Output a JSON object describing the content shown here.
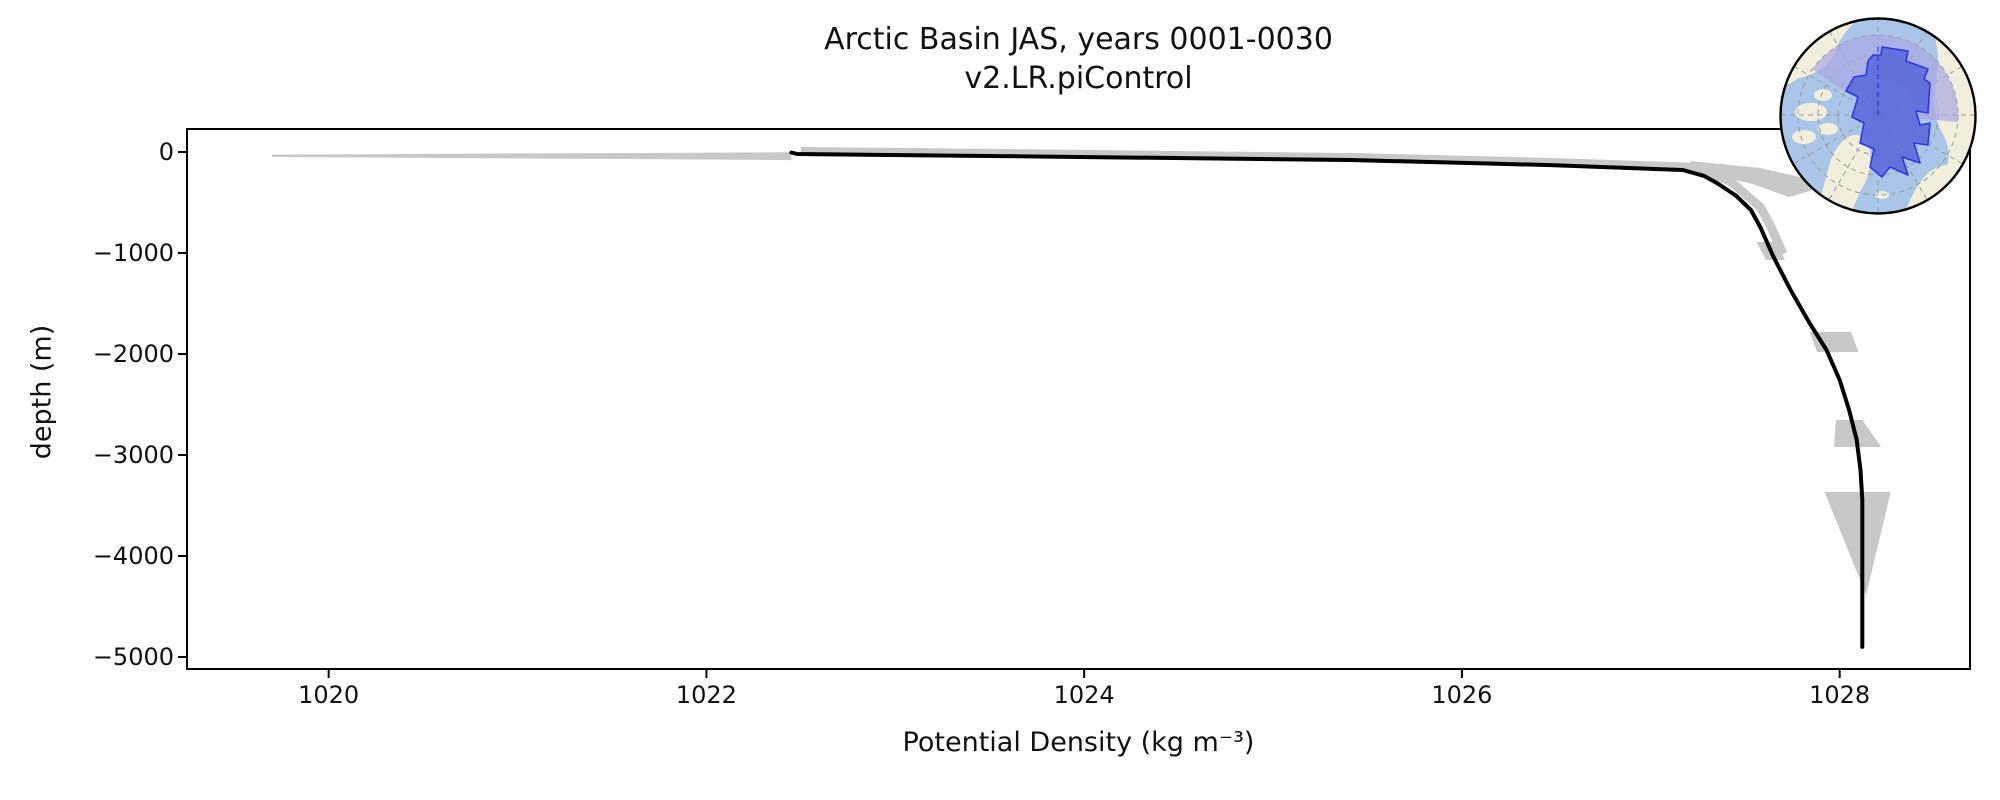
{
  "figure": {
    "title_line1": "Arctic Basin JAS, years 0001-0030",
    "title_line2": "v2.LR.piControl"
  },
  "chart_data": {
    "type": "line",
    "title": "Arctic Basin JAS, years 0001-0030\nv2.LR.piControl",
    "xlabel": "Potential Density (kg m⁻³)",
    "ylabel": "depth (m)",
    "xlim": [
      1019.25,
      1028.69
    ],
    "ylim": [
      -5119,
      228
    ],
    "grid": false,
    "legend_position": "none",
    "x_ticks": {
      "values": [
        1020,
        1022,
        1024,
        1026,
        1028
      ],
      "labels": [
        "1020",
        "1022",
        "1024",
        "1026",
        "1028"
      ]
    },
    "y_ticks": {
      "values": [
        0,
        -1000,
        -2000,
        -3000,
        -4000,
        -5000
      ],
      "labels": [
        "0",
        "−1000",
        "−2000",
        "−3000",
        "−4000",
        "−5000"
      ]
    },
    "series": [
      {
        "name": "mean-potential-density-profile",
        "color": "#000000",
        "line_width": 4,
        "points": [
          [
            1022.45,
            -5
          ],
          [
            1022.48,
            -20
          ],
          [
            1023.56,
            -40
          ],
          [
            1025.41,
            -79
          ],
          [
            1026.47,
            -129
          ],
          [
            1027.17,
            -178
          ],
          [
            1027.28,
            -235
          ],
          [
            1027.35,
            -307
          ],
          [
            1027.45,
            -430
          ],
          [
            1027.53,
            -574
          ],
          [
            1027.58,
            -743
          ],
          [
            1027.65,
            -1040
          ],
          [
            1027.74,
            -1366
          ],
          [
            1027.84,
            -1693
          ],
          [
            1027.93,
            -1960
          ],
          [
            1028.0,
            -2257
          ],
          [
            1028.05,
            -2554
          ],
          [
            1028.09,
            -2851
          ],
          [
            1028.11,
            -3148
          ],
          [
            1028.12,
            -3445
          ],
          [
            1028.12,
            -3841
          ],
          [
            1028.12,
            -4237
          ],
          [
            1028.12,
            -4900
          ]
        ]
      }
    ],
    "band": {
      "name": "std-dev-envelope",
      "color": "#c8c8c8",
      "spine_path": [
        [
          1022.5,
          5
        ],
        [
          1023.6,
          -15
        ],
        [
          1025.45,
          -55
        ],
        [
          1026.5,
          -105
        ],
        [
          1027.22,
          -150
        ],
        [
          1027.42,
          -287
        ],
        [
          1027.58,
          -545
        ],
        [
          1027.63,
          -715
        ],
        [
          1027.7,
          -1010
        ]
      ],
      "surface_sliver": [
        [
          1019.7,
          -25
        ],
        [
          1022.45,
          -3
        ],
        [
          1022.45,
          -80
        ],
        [
          1019.7,
          -48
        ]
      ],
      "knee_bulge": [
        [
          1027.21,
          -89
        ],
        [
          1027.58,
          -158
        ],
        [
          1027.79,
          -248
        ],
        [
          1027.86,
          -376
        ],
        [
          1027.73,
          -446
        ],
        [
          1027.54,
          -317
        ],
        [
          1027.22,
          -178
        ]
      ],
      "deep_blobs": [
        [
          [
            1027.56,
            -891
          ],
          [
            1027.67,
            -891
          ],
          [
            1027.71,
            -1069
          ],
          [
            1027.61,
            -1069
          ]
        ],
        [
          [
            1027.84,
            -1782
          ],
          [
            1028.06,
            -1782
          ],
          [
            1028.1,
            -1980
          ],
          [
            1027.88,
            -1980
          ]
        ],
        [
          [
            1027.98,
            -2653
          ],
          [
            1028.12,
            -2653
          ],
          [
            1028.22,
            -2921
          ],
          [
            1027.97,
            -2921
          ]
        ],
        [
          [
            1027.92,
            -3366
          ],
          [
            1028.27,
            -3366
          ],
          [
            1028.14,
            -4386
          ]
        ]
      ]
    }
  },
  "inset_map": {
    "description": "north-polar locator map",
    "highlighted_region": "Arctic Basin",
    "colors": {
      "ocean": "#a9c5e8",
      "land": "#f1eedb",
      "region_fill": "#5a67da",
      "region_outline": "#2c3ae0",
      "region_overlay": "#a9a7e2",
      "graticule": "#999999",
      "border": "#000000"
    }
  }
}
